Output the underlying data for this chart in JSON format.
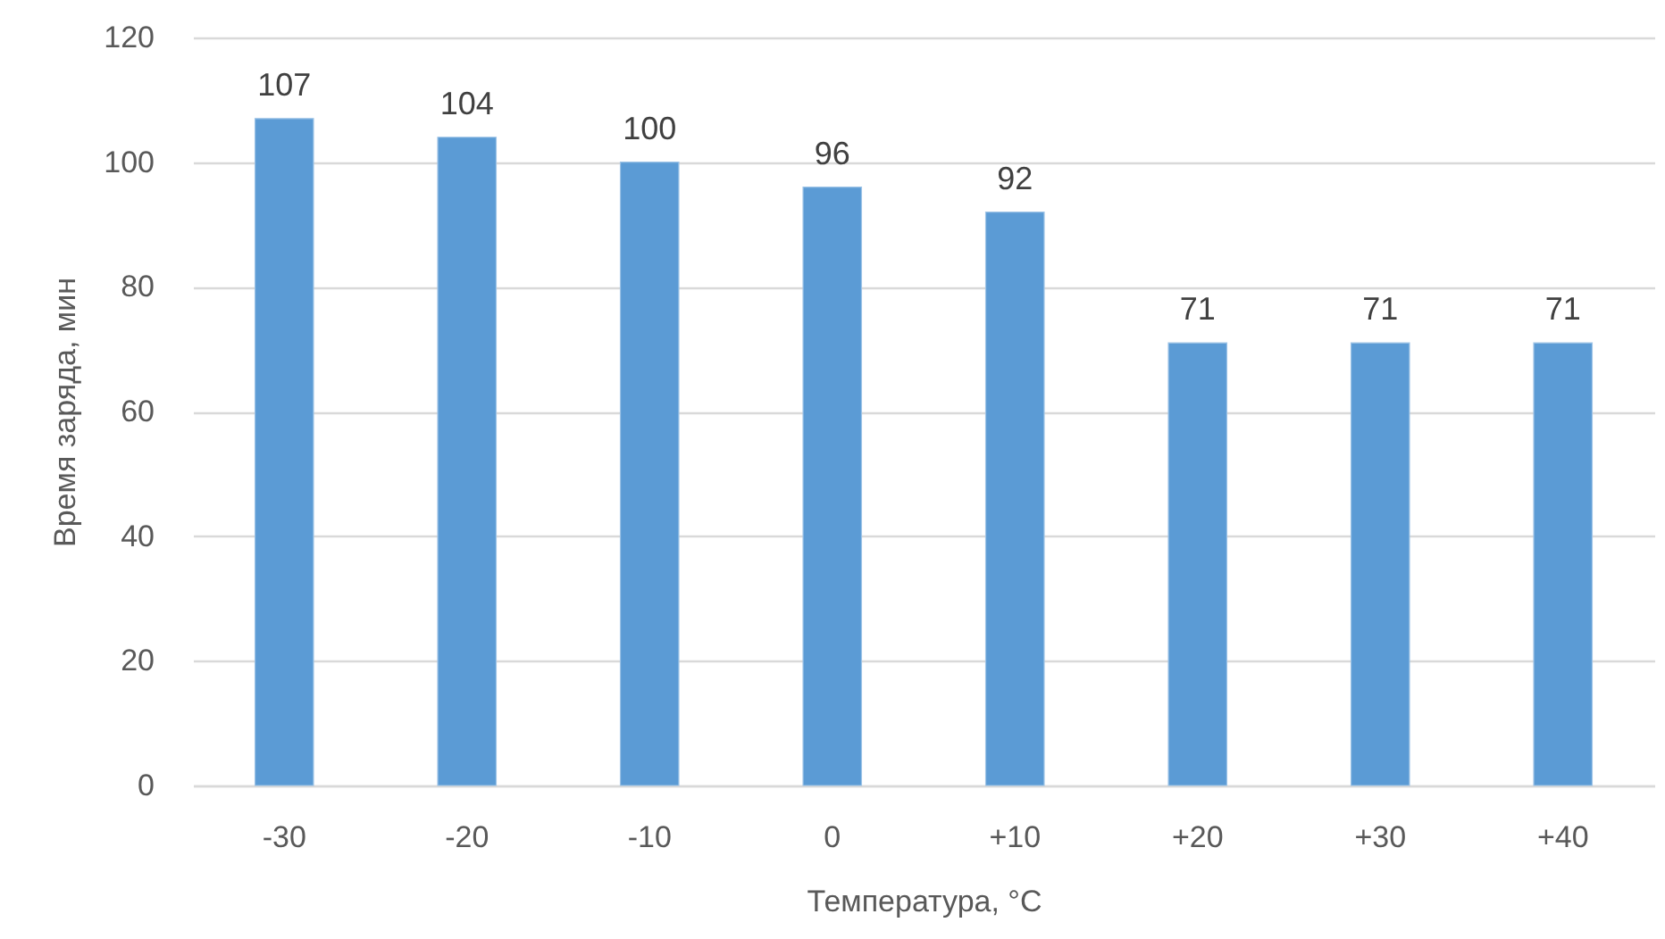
{
  "chart_data": {
    "type": "bar",
    "xlabel": "Температура, °C",
    "ylabel": "Время заряда, мин",
    "categories": [
      "-30",
      "-20",
      "-10",
      "0",
      "+10",
      "+20",
      "+30",
      "+40"
    ],
    "values": [
      107,
      104,
      100,
      96,
      92,
      71,
      71,
      71
    ],
    "color": "#5b9bd5",
    "ylim": [
      0,
      120
    ],
    "yticks": [
      0,
      20,
      40,
      60,
      80,
      100,
      120
    ],
    "grid": "y",
    "data_labels": true
  }
}
